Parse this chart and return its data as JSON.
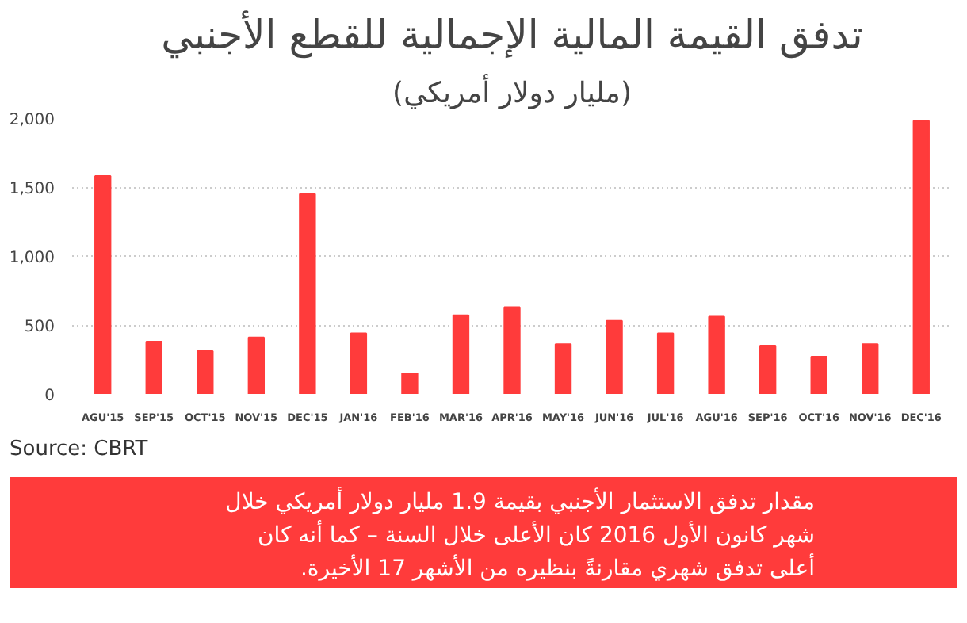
{
  "chart_data": {
    "type": "bar",
    "title": "تدفق القيمة المالية الإجمالية للقطع الأجنبي",
    "subtitle": "(مليار دولار أمريكي)",
    "categories": [
      "AGU'15",
      "SEP'15",
      "OCT'15",
      "NOV'15",
      "DEC'15",
      "JAN'16",
      "FEB'16",
      "MAR'16",
      "APR'16",
      "MAY'16",
      "JUN'16",
      "JUL'16",
      "AGU'16",
      "SEP'16",
      "OCT'16",
      "NOV'16",
      "DEC'16"
    ],
    "values": [
      1580,
      380,
      310,
      410,
      1450,
      440,
      150,
      570,
      630,
      360,
      530,
      440,
      560,
      350,
      270,
      360,
      1980
    ],
    "color": "#ff3b3b",
    "ylim": [
      0,
      2000
    ],
    "yticks": [
      0,
      {
        "value": 500,
        "label": "500"
      },
      {
        "value": 1000,
        "label": "1,000"
      },
      {
        "value": 1500,
        "label": "1,500"
      },
      {
        "value": 2000,
        "label": "2,000"
      }
    ],
    "grid": "y",
    "annotations": [
      "Source: CBRT",
      "مقدار تدفق الاستثمار الأجنبي بقيمة 1.9 مليار دولار أمريكي خلال شهر كانون الأول 2016 كان الأعلى خلال السنة – كما أنه كان أعلى تدفق شهري مقارنةً بنظيره من الأشهر 17 الأخيرة."
    ]
  }
}
